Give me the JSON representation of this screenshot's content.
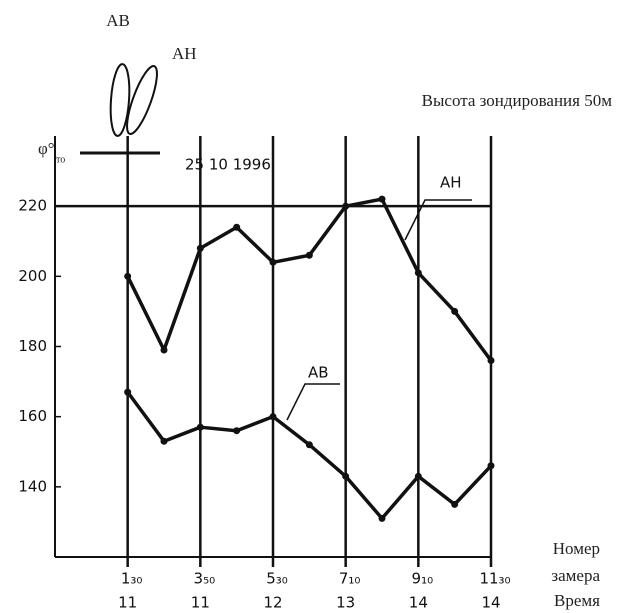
{
  "chart_data": {
    "type": "line",
    "title": "Высота зондирования 50м",
    "date_label": "25 10 1996",
    "antenna_labels": [
      "АВ",
      "АН"
    ],
    "y_label": "φ°",
    "y_label_sub": "то",
    "x_label_lines": [
      "Номер",
      "замера"
    ],
    "x_sublabel": "Время",
    "x": [
      1,
      2,
      3,
      4,
      5,
      6,
      7,
      8,
      9,
      10,
      11
    ],
    "series": [
      {
        "name": "АН",
        "color": "#111111",
        "values": [
          200,
          179,
          208,
          214,
          204,
          206,
          220,
          222,
          201,
          190,
          176
        ]
      },
      {
        "name": "АВ",
        "color": "#111111",
        "values": [
          167,
          153,
          157,
          156,
          160,
          152,
          143,
          131,
          143,
          135,
          146
        ]
      }
    ],
    "xlim": [
      -1,
      11
    ],
    "ylim": [
      120,
      240
    ],
    "xticks": [
      {
        "value": 1,
        "label": "1₃₀"
      },
      {
        "value": 3,
        "label": "3₅₀"
      },
      {
        "value": 5,
        "label": "5₃₀"
      },
      {
        "value": 7,
        "label": "7₁₀"
      },
      {
        "value": 9,
        "label": "9₁₀"
      },
      {
        "value": 11,
        "label": "11₃₀"
      }
    ],
    "xtick_times": [
      "11",
      "11",
      "12",
      "13",
      "14",
      "14"
    ],
    "yticks": [
      140,
      160,
      180,
      200,
      220
    ],
    "reference_line": 220,
    "grid": true
  }
}
